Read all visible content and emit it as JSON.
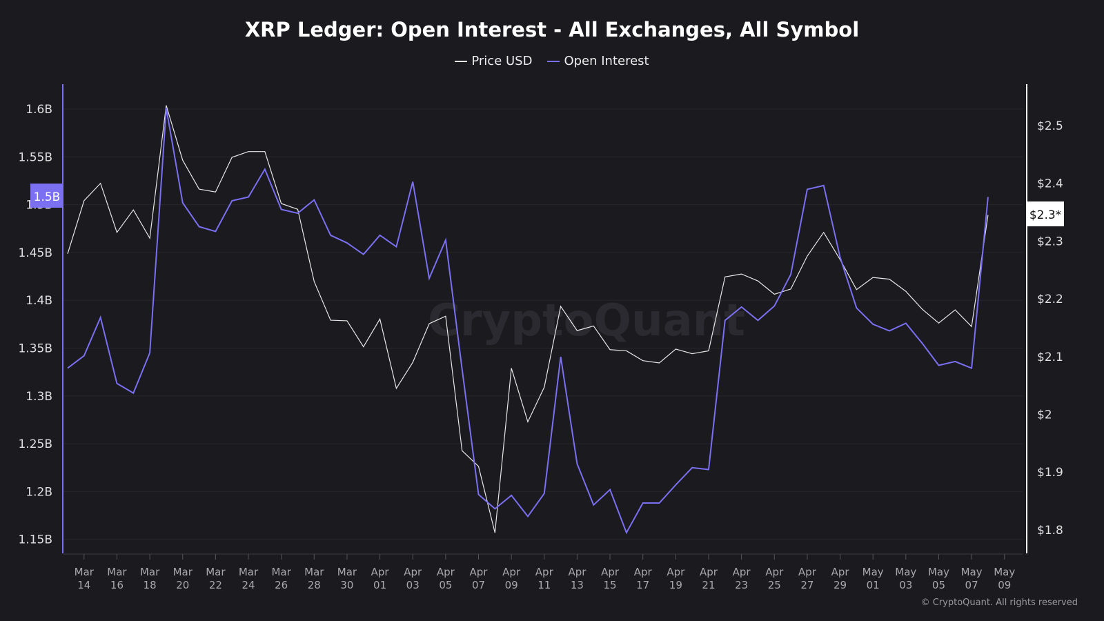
{
  "chart_data": {
    "type": "line",
    "title": "XRP Ledger: Open Interest - All Exchanges, All Symbol",
    "legend_placement": "top-center",
    "grid": true,
    "x_tick_labels": [
      [
        "Mar",
        "14"
      ],
      [
        "Mar",
        "16"
      ],
      [
        "Mar",
        "18"
      ],
      [
        "Mar",
        "20"
      ],
      [
        "Mar",
        "22"
      ],
      [
        "Mar",
        "24"
      ],
      [
        "Mar",
        "26"
      ],
      [
        "Mar",
        "28"
      ],
      [
        "Mar",
        "30"
      ],
      [
        "Apr",
        "01"
      ],
      [
        "Apr",
        "03"
      ],
      [
        "Apr",
        "05"
      ],
      [
        "Apr",
        "07"
      ],
      [
        "Apr",
        "09"
      ],
      [
        "Apr",
        "11"
      ],
      [
        "Apr",
        "13"
      ],
      [
        "Apr",
        "15"
      ],
      [
        "Apr",
        "17"
      ],
      [
        "Apr",
        "19"
      ],
      [
        "Apr",
        "21"
      ],
      [
        "Apr",
        "23"
      ],
      [
        "Apr",
        "25"
      ],
      [
        "Apr",
        "27"
      ],
      [
        "Apr",
        "29"
      ],
      [
        "May",
        "01"
      ],
      [
        "May",
        "03"
      ],
      [
        "May",
        "05"
      ],
      [
        "May",
        "07"
      ],
      [
        "May",
        "09"
      ]
    ],
    "x_start": "Mar 13",
    "x_end": "May 08",
    "left_axis": {
      "ticks": [
        "1.15B",
        "1.2B",
        "1.25B",
        "1.3B",
        "1.35B",
        "1.4B",
        "1.45B",
        "1.5B",
        "1.55B",
        "1.6B"
      ],
      "range_billion": [
        1.13,
        1.625
      ],
      "color": "#7b6ff2",
      "current_label": "1.5B"
    },
    "right_axis": {
      "ticks": [
        "$1.8",
        "$1.9",
        "$2",
        "$2.1",
        "$2.2",
        "$2.3",
        "$2.4",
        "$2.5"
      ],
      "range_usd": [
        1.77,
        2.58
      ],
      "color": "#ffffff",
      "current_label": "$2.3*"
    },
    "series": [
      {
        "name": "Price USD",
        "axis": "right",
        "color": "#e8e8e8",
        "values": [
          2.278,
          2.37,
          2.4,
          2.315,
          2.354,
          2.305,
          2.535,
          2.44,
          2.39,
          2.385,
          2.445,
          2.455,
          2.455,
          2.365,
          2.355,
          2.23,
          2.163,
          2.162,
          2.117,
          2.165,
          2.045,
          2.09,
          2.157,
          2.17,
          1.937,
          1.91,
          1.795,
          2.08,
          1.987,
          2.047,
          2.187,
          2.145,
          2.153,
          2.112,
          2.11,
          2.093,
          2.089,
          2.113,
          2.105,
          2.11,
          2.238,
          2.243,
          2.231,
          2.208,
          2.217,
          2.274,
          2.315,
          2.268,
          2.216,
          2.237,
          2.234,
          2.213,
          2.182,
          2.158,
          2.181,
          2.152,
          2.345
        ]
      },
      {
        "name": "Open Interest",
        "axis": "left",
        "color": "#7b6ff2",
        "values_billion": [
          1.329,
          1.342,
          1.382,
          1.313,
          1.303,
          1.345,
          1.601,
          1.502,
          1.477,
          1.472,
          1.504,
          1.508,
          1.537,
          1.495,
          1.491,
          1.505,
          1.468,
          1.46,
          1.448,
          1.468,
          1.456,
          1.524,
          1.423,
          1.463,
          1.328,
          1.197,
          1.182,
          1.196,
          1.174,
          1.198,
          1.341,
          1.229,
          1.186,
          1.202,
          1.157,
          1.188,
          1.188,
          1.207,
          1.225,
          1.223,
          1.379,
          1.393,
          1.379,
          1.394,
          1.427,
          1.516,
          1.52,
          1.445,
          1.392,
          1.375,
          1.368,
          1.376,
          1.355,
          1.332,
          1.336,
          1.329,
          1.508
        ]
      }
    ]
  },
  "watermark": "CryptoQuant",
  "copyright": "© CryptoQuant. All rights reserved"
}
